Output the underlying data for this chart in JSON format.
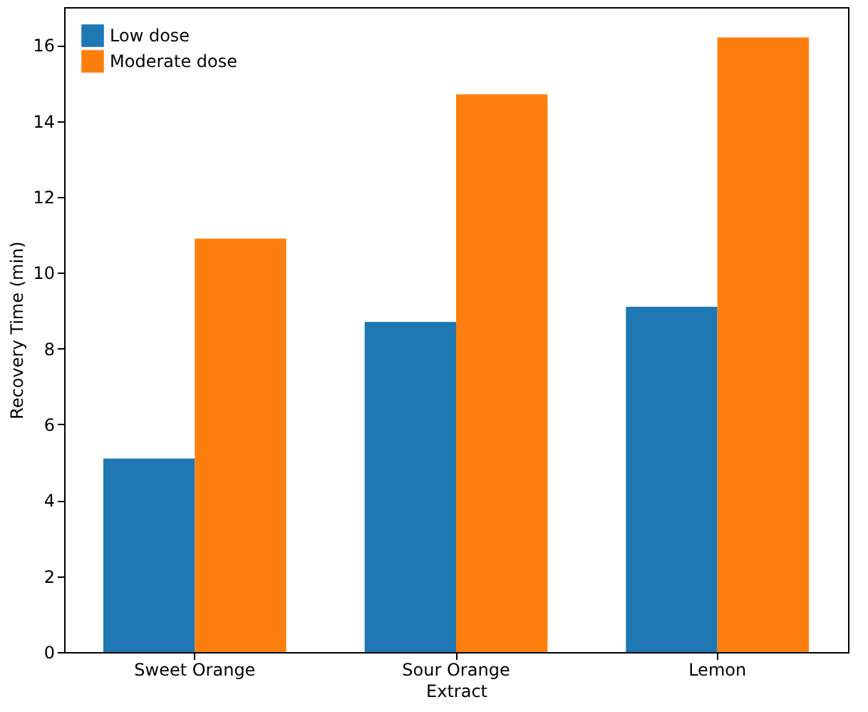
{
  "chart_data": {
    "type": "bar",
    "xlabel": "Extract",
    "ylabel": "Recovery Time (min)",
    "categories": [
      "Sweet Orange",
      "Sour Orange",
      "Lemon"
    ],
    "series": [
      {
        "name": "Low dose",
        "color": "#1f77b4",
        "values": [
          5.1,
          8.7,
          9.1
        ]
      },
      {
        "name": "Moderate dose",
        "color": "#ff7f0e",
        "values": [
          10.9,
          14.7,
          16.2
        ]
      }
    ],
    "ylim": [
      0,
      17
    ],
    "yticks": [
      0,
      2,
      4,
      6,
      8,
      10,
      12,
      14,
      16
    ],
    "grid": false,
    "legend": "top left"
  }
}
